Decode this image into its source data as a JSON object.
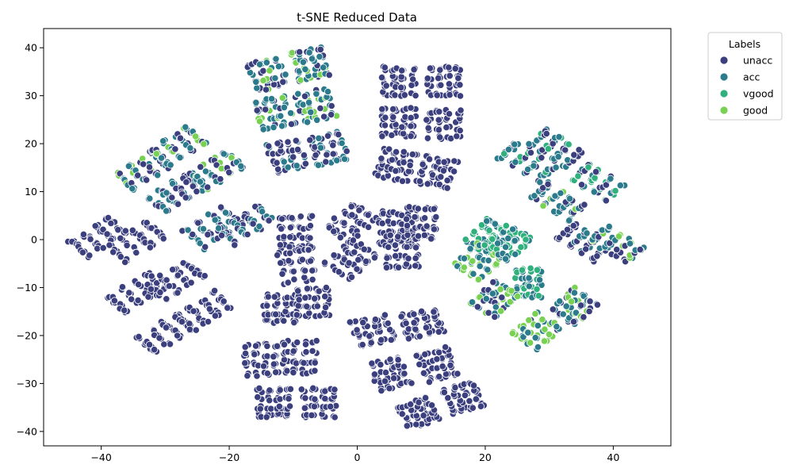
{
  "chart_data": {
    "type": "scatter",
    "title": "t-SNE Reduced Data",
    "xlabel": "",
    "ylabel": "",
    "xlim": [
      -49,
      49
    ],
    "ylim": [
      -43,
      44
    ],
    "xticks": [
      -40,
      -20,
      0,
      20,
      40
    ],
    "yticks": [
      -40,
      -30,
      -20,
      -10,
      0,
      10,
      20,
      30,
      40
    ],
    "grid": false,
    "legend": {
      "title": "Labels",
      "position": "outside-top-right",
      "entries": [
        "unacc",
        "acc",
        "vgood",
        "good"
      ]
    },
    "colors": {
      "unacc": "#3b3f7e",
      "acc": "#2b7b8d",
      "vgood": "#2fb07c",
      "good": "#78d152"
    },
    "clusters": [
      {
        "center": [
          -40.5,
          0.5
        ],
        "size": [
          5,
          10
        ],
        "angle": -50
      },
      {
        "center": [
          -34.5,
          -0.5
        ],
        "size": [
          5,
          10
        ],
        "angle": -50
      },
      {
        "center": [
          -34.5,
          -11
        ],
        "size": [
          5,
          10
        ],
        "angle": -50
      },
      {
        "center": [
          -28.5,
          -8.5
        ],
        "size": [
          5,
          10
        ],
        "angle": -50
      },
      {
        "center": [
          -30,
          -19.5
        ],
        "size": [
          5,
          10
        ],
        "angle": -50
      },
      {
        "center": [
          -24,
          -15
        ],
        "size": [
          5,
          10
        ],
        "angle": -50
      },
      {
        "center": [
          -33.5,
          14.5
        ],
        "size": [
          5,
          9
        ],
        "angle": -50,
        "mix": {
          "unacc": 0.3,
          "acc": 0.5,
          "good": 0.2
        }
      },
      {
        "center": [
          -28,
          19.5
        ],
        "size": [
          5,
          9
        ],
        "angle": -50,
        "mix": {
          "unacc": 0.3,
          "acc": 0.5,
          "good": 0.2
        }
      },
      {
        "center": [
          -28.5,
          9.5
        ],
        "size": [
          5,
          9
        ],
        "angle": -50,
        "mix": {
          "unacc": 0.6,
          "acc": 0.4
        }
      },
      {
        "center": [
          -22,
          14.5
        ],
        "size": [
          5,
          9
        ],
        "angle": -50,
        "mix": {
          "unacc": 0.3,
          "acc": 0.5,
          "good": 0.2
        }
      },
      {
        "center": [
          -22.5,
          2.5
        ],
        "size": [
          6,
          10
        ],
        "angle": -50,
        "mix": {
          "unacc": 0.5,
          "acc": 0.5
        }
      },
      {
        "center": [
          -17.5,
          3
        ],
        "size": [
          5,
          10
        ],
        "angle": -50,
        "mix": {
          "unacc": 0.5,
          "acc": 0.5
        }
      },
      {
        "center": [
          -14,
          34.5
        ],
        "size": [
          6,
          7
        ],
        "angle": 15,
        "mix": {
          "unacc": 0.3,
          "acc": 0.5,
          "good": 0.2
        }
      },
      {
        "center": [
          -7.5,
          36.5
        ],
        "size": [
          6,
          7
        ],
        "angle": 15,
        "mix": {
          "unacc": 0.3,
          "acc": 0.5,
          "good": 0.2
        }
      },
      {
        "center": [
          -13,
          26.5
        ],
        "size": [
          6,
          7
        ],
        "angle": 15,
        "mix": {
          "unacc": 0.3,
          "acc": 0.5,
          "good": 0.2
        }
      },
      {
        "center": [
          -6.5,
          28
        ],
        "size": [
          6,
          7
        ],
        "angle": 15,
        "mix": {
          "unacc": 0.3,
          "acc": 0.5,
          "good": 0.2
        }
      },
      {
        "center": [
          -11,
          17.5
        ],
        "size": [
          6,
          7
        ],
        "angle": 15,
        "mix": {
          "unacc": 0.6,
          "acc": 0.4
        }
      },
      {
        "center": [
          -4.5,
          19
        ],
        "size": [
          6,
          7
        ],
        "angle": 15,
        "mix": {
          "unacc": 0.6,
          "acc": 0.4
        }
      },
      {
        "center": [
          6.5,
          33
        ],
        "size": [
          6,
          7
        ],
        "angle": 0
      },
      {
        "center": [
          13.5,
          33
        ],
        "size": [
          6,
          7
        ],
        "angle": 0
      },
      {
        "center": [
          6.5,
          24.5
        ],
        "size": [
          6,
          7
        ],
        "angle": 0
      },
      {
        "center": [
          13.5,
          24
        ],
        "size": [
          6,
          7
        ],
        "angle": 0
      },
      {
        "center": [
          6,
          15.5
        ],
        "size": [
          6,
          7
        ],
        "angle": -15
      },
      {
        "center": [
          12.5,
          14
        ],
        "size": [
          6,
          7
        ],
        "angle": -15
      },
      {
        "center": [
          -9.5,
          1.5
        ],
        "size": [
          6,
          8
        ],
        "angle": 0
      },
      {
        "center": [
          -9.5,
          -5.5
        ],
        "size": [
          6,
          8
        ],
        "angle": 10
      },
      {
        "center": [
          -1,
          3.5
        ],
        "size": [
          6,
          8
        ],
        "angle": -40
      },
      {
        "center": [
          -1,
          -4
        ],
        "size": [
          6,
          8
        ],
        "angle": -40
      },
      {
        "center": [
          6,
          2.5
        ],
        "size": [
          6,
          8
        ],
        "angle": 0
      },
      {
        "center": [
          10,
          3.5
        ],
        "size": [
          5,
          8
        ],
        "angle": 0
      },
      {
        "center": [
          7,
          -2.5
        ],
        "size": [
          6,
          8
        ],
        "angle": 0
      },
      {
        "center": [
          -12,
          -14.5
        ],
        "size": [
          6,
          7
        ],
        "angle": 0
      },
      {
        "center": [
          -7,
          -13
        ],
        "size": [
          6,
          7
        ],
        "angle": 0
      },
      {
        "center": [
          -15,
          -25
        ],
        "size": [
          6,
          8
        ],
        "angle": 0
      },
      {
        "center": [
          -9,
          -24.5
        ],
        "size": [
          6,
          8
        ],
        "angle": 0
      },
      {
        "center": [
          -13,
          -34
        ],
        "size": [
          6,
          7
        ],
        "angle": 0
      },
      {
        "center": [
          -6,
          -34
        ],
        "size": [
          6,
          7
        ],
        "angle": 0
      },
      {
        "center": [
          2.5,
          -19
        ],
        "size": [
          7,
          6
        ],
        "angle": 15
      },
      {
        "center": [
          10,
          -17.5
        ],
        "size": [
          7,
          6
        ],
        "angle": 15
      },
      {
        "center": [
          5,
          -28
        ],
        "size": [
          6,
          7
        ],
        "angle": 20
      },
      {
        "center": [
          12.5,
          -26
        ],
        "size": [
          6,
          7
        ],
        "angle": 20
      },
      {
        "center": [
          9.5,
          -36
        ],
        "size": [
          6,
          6
        ],
        "angle": 20
      },
      {
        "center": [
          16.5,
          -33
        ],
        "size": [
          6,
          6
        ],
        "angle": 20
      },
      {
        "center": [
          26.5,
          16
        ],
        "size": [
          5,
          10
        ],
        "angle": 50,
        "mix": {
          "unacc": 0.3,
          "acc": 0.5,
          "vgood": 0.2
        }
      },
      {
        "center": [
          31,
          19
        ],
        "size": [
          5,
          9
        ],
        "angle": 50,
        "mix": {
          "unacc": 0.3,
          "acc": 0.5,
          "vgood": 0.2
        }
      },
      {
        "center": [
          31.5,
          8
        ],
        "size": [
          5,
          9
        ],
        "angle": 50,
        "mix": {
          "unacc": 0.3,
          "acc": 0.5,
          "good": 0.2
        }
      },
      {
        "center": [
          37.5,
          12
        ],
        "size": [
          5,
          9
        ],
        "angle": 50,
        "mix": {
          "unacc": 0.2,
          "acc": 0.4,
          "vgood": 0.4
        }
      },
      {
        "center": [
          35.5,
          -0.5
        ],
        "size": [
          5,
          9
        ],
        "angle": 50,
        "mix": {
          "unacc": 0.6,
          "acc": 0.4
        }
      },
      {
        "center": [
          40.5,
          -1
        ],
        "size": [
          5,
          9
        ],
        "angle": 50,
        "mix": {
          "unacc": 0.3,
          "acc": 0.4,
          "good": 0.3
        }
      },
      {
        "center": [
          20.5,
          0.5
        ],
        "size": [
          6,
          7
        ],
        "angle": -40,
        "mix": {
          "acc": 0.5,
          "vgood": 0.5
        }
      },
      {
        "center": [
          19,
          -4.5
        ],
        "size": [
          6,
          7
        ],
        "angle": -40,
        "mix": {
          "acc": 0.5,
          "good": 0.5
        }
      },
      {
        "center": [
          23.5,
          -0.5
        ],
        "size": [
          6,
          7
        ],
        "angle": -40,
        "mix": {
          "acc": 0.5,
          "vgood": 0.5
        }
      },
      {
        "center": [
          26.5,
          -9
        ],
        "size": [
          5,
          7
        ],
        "angle": 0,
        "mix": {
          "acc": 0.5,
          "vgood": 0.5
        }
      },
      {
        "center": [
          21.5,
          -12.5
        ],
        "size": [
          6,
          7
        ],
        "angle": -40,
        "mix": {
          "unacc": 0.3,
          "acc": 0.4,
          "good": 0.3
        }
      },
      {
        "center": [
          28,
          -19
        ],
        "size": [
          6,
          7
        ],
        "angle": -40,
        "mix": {
          "unacc": 0.2,
          "acc": 0.4,
          "good": 0.4
        }
      },
      {
        "center": [
          34,
          -14
        ],
        "size": [
          6,
          7
        ],
        "angle": -40,
        "mix": {
          "unacc": 0.3,
          "acc": 0.4,
          "good": 0.3
        }
      }
    ]
  }
}
